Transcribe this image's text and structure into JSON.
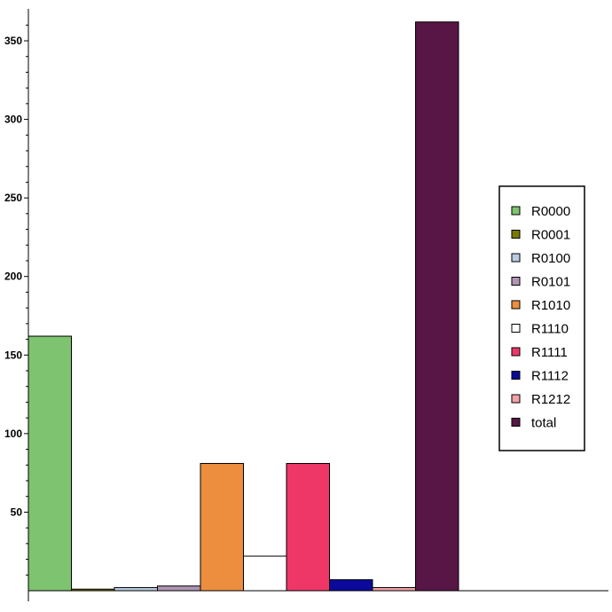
{
  "chart_data": {
    "type": "bar",
    "title": "",
    "xlabel": "",
    "ylabel": "",
    "ylim": [
      0,
      370
    ],
    "yticks": [
      50,
      100,
      150,
      200,
      250,
      300,
      350
    ],
    "legend_position": "right",
    "grid": false,
    "series": [
      {
        "name": "R0000",
        "value": 162,
        "color": "#7dc370"
      },
      {
        "name": "R0001",
        "value": 1,
        "color": "#7a7a00"
      },
      {
        "name": "R0100",
        "value": 2,
        "color": "#b8cce0"
      },
      {
        "name": "R0101",
        "value": 3,
        "color": "#b094b4"
      },
      {
        "name": "R1010",
        "value": 81,
        "color": "#ec8e3e"
      },
      {
        "name": "R1110",
        "value": 22,
        "color": "#ffffff"
      },
      {
        "name": "R1111",
        "value": 81,
        "color": "#ee3767"
      },
      {
        "name": "R1112",
        "value": 7,
        "color": "#0b0a9c"
      },
      {
        "name": "R1212",
        "value": 2,
        "color": "#f4a0a8"
      },
      {
        "name": "total",
        "value": 362,
        "color": "#571646"
      }
    ]
  }
}
